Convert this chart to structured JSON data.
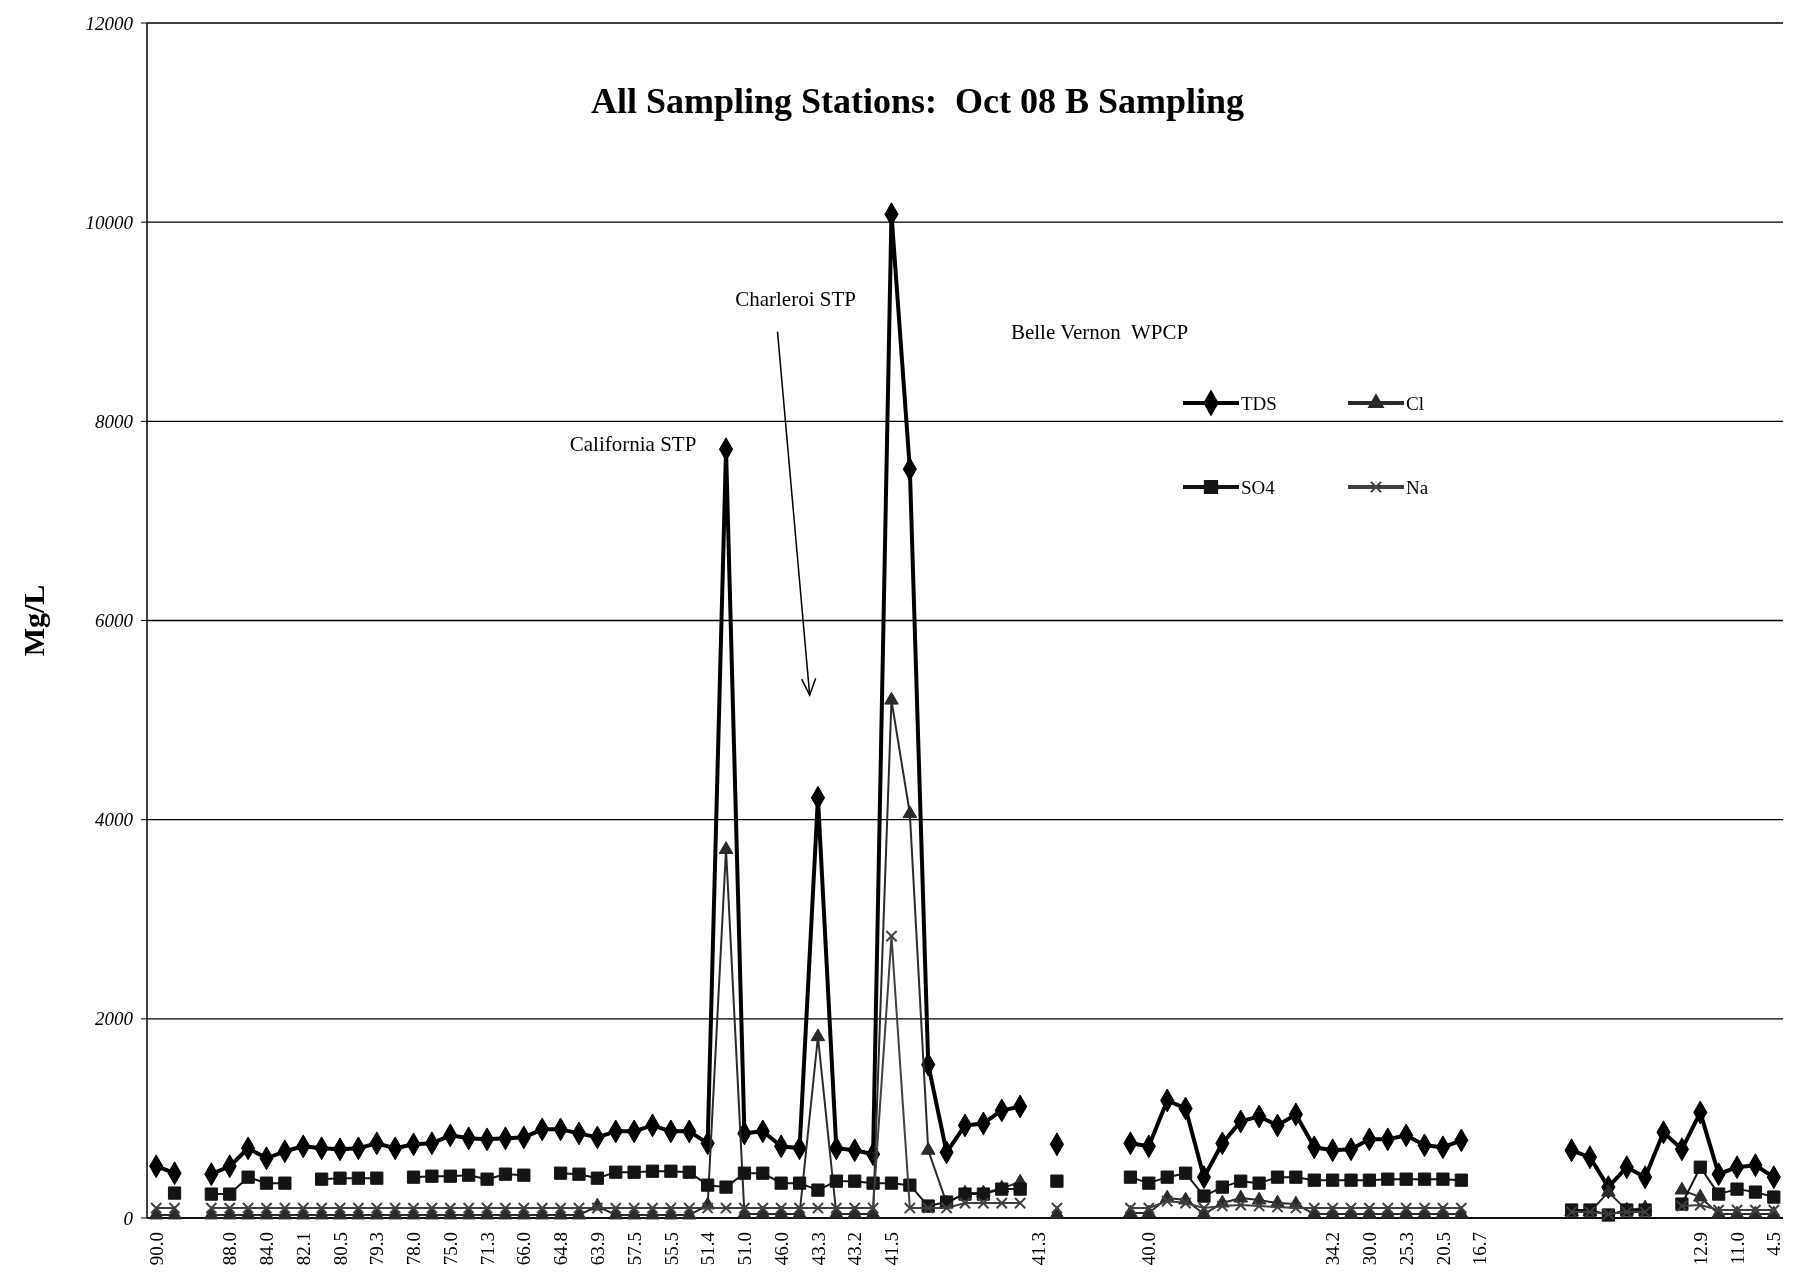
{
  "chart_data": {
    "type": "line",
    "title": "All Sampling Stations:  Oct 08 B Sampling",
    "ylabel": "Mg/L",
    "categories": [
      "90.0",
      null,
      null,
      null,
      "88.0",
      null,
      "84.0",
      null,
      "82.1",
      null,
      "80.5",
      null,
      "79.3",
      null,
      "78.0",
      null,
      "75.0",
      null,
      "71.3",
      null,
      "66.0",
      null,
      "64.8",
      null,
      "63.9",
      null,
      "57.5",
      null,
      "55.5",
      null,
      "51.4",
      null,
      "51.0",
      null,
      "46.0",
      null,
      "43.3",
      null,
      "43.2",
      null,
      "41.5",
      null,
      null,
      null,
      null,
      null,
      null,
      null,
      "41.3",
      null,
      null,
      null,
      null,
      null,
      "40.0",
      null,
      null,
      null,
      null,
      null,
      null,
      null,
      null,
      null,
      "34.2",
      null,
      "30.0",
      null,
      "25.3",
      null,
      "20.5",
      null,
      "16.7",
      null,
      null,
      null,
      null,
      null,
      null,
      null,
      null,
      null,
      null,
      null,
      "12.9",
      null,
      "11.0",
      null,
      "4.5"
    ],
    "series": [
      {
        "name": "TDS",
        "color": "#000000",
        "marker": "diamond",
        "values": [
          520,
          450,
          null,
          440,
          520,
          700,
          600,
          670,
          720,
          700,
          690,
          700,
          750,
          700,
          740,
          750,
          830,
          800,
          790,
          800,
          810,
          890,
          890,
          850,
          810,
          870,
          870,
          930,
          870,
          870,
          750,
          7720,
          850,
          870,
          720,
          700,
          4220,
          700,
          680,
          640,
          10080,
          7520,
          1540,
          660,
          930,
          950,
          1080,
          1120,
          null,
          740,
          null,
          null,
          null,
          750,
          720,
          1180,
          1100,
          410,
          750,
          970,
          1020,
          930,
          1040,
          710,
          680,
          690,
          790,
          790,
          830,
          730,
          710,
          780,
          null,
          null,
          null,
          null,
          null,
          680,
          610,
          310,
          510,
          410,
          860,
          690,
          1060,
          440,
          510,
          530,
          410
        ]
      },
      {
        "name": "Cl",
        "color": "#2a2a2a",
        "marker": "triangle",
        "values": [
          30,
          30,
          null,
          30,
          30,
          30,
          30,
          30,
          30,
          30,
          30,
          30,
          30,
          30,
          30,
          30,
          30,
          30,
          30,
          30,
          30,
          30,
          30,
          30,
          120,
          30,
          30,
          30,
          30,
          30,
          130,
          3700,
          40,
          40,
          40,
          40,
          1820,
          40,
          40,
          40,
          5200,
          4060,
          680,
          150,
          250,
          250,
          300,
          360,
          null,
          40,
          null,
          null,
          null,
          50,
          50,
          200,
          180,
          40,
          150,
          200,
          180,
          150,
          140,
          40,
          40,
          40,
          40,
          40,
          40,
          40,
          40,
          40,
          null,
          null,
          null,
          null,
          null,
          60,
          60,
          260,
          80,
          100,
          null,
          280,
          210,
          40,
          40,
          40,
          40
        ]
      },
      {
        "name": "SO4",
        "color": "#141414",
        "marker": "square",
        "values": [
          null,
          250,
          null,
          240,
          240,
          410,
          350,
          350,
          null,
          390,
          400,
          400,
          400,
          null,
          410,
          420,
          420,
          430,
          390,
          440,
          430,
          null,
          450,
          440,
          400,
          460,
          460,
          470,
          470,
          460,
          330,
          310,
          450,
          450,
          350,
          350,
          280,
          370,
          370,
          350,
          350,
          330,
          120,
          160,
          240,
          240,
          290,
          290,
          null,
          370,
          null,
          null,
          null,
          410,
          350,
          410,
          450,
          220,
          310,
          370,
          350,
          410,
          410,
          380,
          380,
          380,
          380,
          390,
          390,
          390,
          390,
          380,
          null,
          null,
          null,
          null,
          null,
          80,
          80,
          30,
          80,
          80,
          null,
          140,
          510,
          240,
          290,
          260,
          210
        ]
      },
      {
        "name": "Na",
        "color": "#404040",
        "marker": "cross",
        "values": [
          100,
          100,
          null,
          100,
          100,
          100,
          100,
          100,
          100,
          100,
          100,
          100,
          100,
          100,
          100,
          100,
          100,
          100,
          100,
          100,
          100,
          100,
          100,
          100,
          100,
          100,
          100,
          100,
          100,
          100,
          100,
          100,
          100,
          100,
          100,
          100,
          100,
          100,
          100,
          100,
          2830,
          100,
          100,
          100,
          150,
          150,
          150,
          150,
          null,
          100,
          null,
          null,
          null,
          100,
          100,
          170,
          150,
          100,
          120,
          130,
          120,
          110,
          100,
          100,
          100,
          100,
          100,
          100,
          100,
          100,
          100,
          100,
          null,
          null,
          null,
          null,
          null,
          60,
          60,
          40,
          60,
          60,
          null,
          120,
          130,
          80,
          80,
          80,
          80
        ]
      }
    ],
    "ylim": [
      0,
      12000
    ],
    "yticks": [
      0,
      2000,
      4000,
      6000,
      8000,
      10000,
      12000
    ],
    "grid": "y",
    "legend": "top right",
    "line_style": "solid",
    "annotations": [
      "California STP",
      "Charleroi STP",
      "Belle Vernon  WPCP"
    ]
  }
}
